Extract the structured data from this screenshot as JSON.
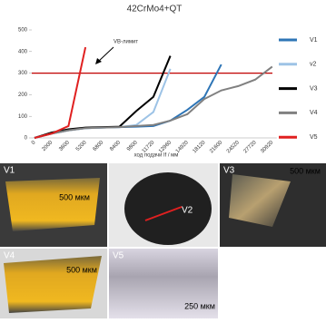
{
  "chart_data": {
    "type": "line",
    "title": "42CrMo4+QT",
    "categories": [
      "0",
      "2000",
      "3600",
      "5200",
      "6800",
      "8400",
      "9800",
      "11720",
      "12960",
      "14920",
      "18120",
      "21600",
      "24520",
      "27720",
      "30920"
    ],
    "series": [
      {
        "name": "V1",
        "color": "#2e75b6",
        "values": [
          0,
          20,
          35,
          45,
          48,
          50,
          52,
          55,
          80,
          130,
          190,
          340,
          null,
          null,
          null
        ]
      },
      {
        "name": "v2",
        "color": "#9dc3e6",
        "values": [
          0,
          20,
          35,
          45,
          48,
          50,
          60,
          120,
          320,
          null,
          null,
          null,
          null,
          null,
          null
        ]
      },
      {
        "name": "V3",
        "color": "#000000",
        "values": [
          0,
          25,
          40,
          48,
          50,
          52,
          125,
          190,
          380,
          null,
          null,
          null,
          null,
          null,
          null
        ]
      },
      {
        "name": "V4",
        "color": "#808080",
        "values": [
          0,
          20,
          35,
          45,
          48,
          50,
          55,
          60,
          80,
          110,
          180,
          220,
          240,
          270,
          330
        ]
      },
      {
        "name": "V5",
        "color": "#e02020",
        "values": [
          0,
          20,
          55,
          420,
          null,
          null,
          null,
          null,
          null,
          null,
          null,
          null,
          null,
          null,
          null
        ]
      }
    ],
    "ylim": [
      0,
      500
    ],
    "yticks": [
      0,
      100,
      200,
      300,
      400,
      500
    ],
    "threshold": 300,
    "threshold_color": "#c00000",
    "threshold_label": "VB-лимит",
    "xlabel": "ход подачи lf / мм"
  },
  "images": [
    {
      "label": "V1",
      "scale": "500 мкм"
    },
    {
      "label": "V2"
    },
    {
      "label": "V3",
      "scale": "500 мкм"
    },
    {
      "label": "V4",
      "scale": "500 мкм"
    },
    {
      "label": "V5",
      "scale": "250 мкм"
    }
  ]
}
